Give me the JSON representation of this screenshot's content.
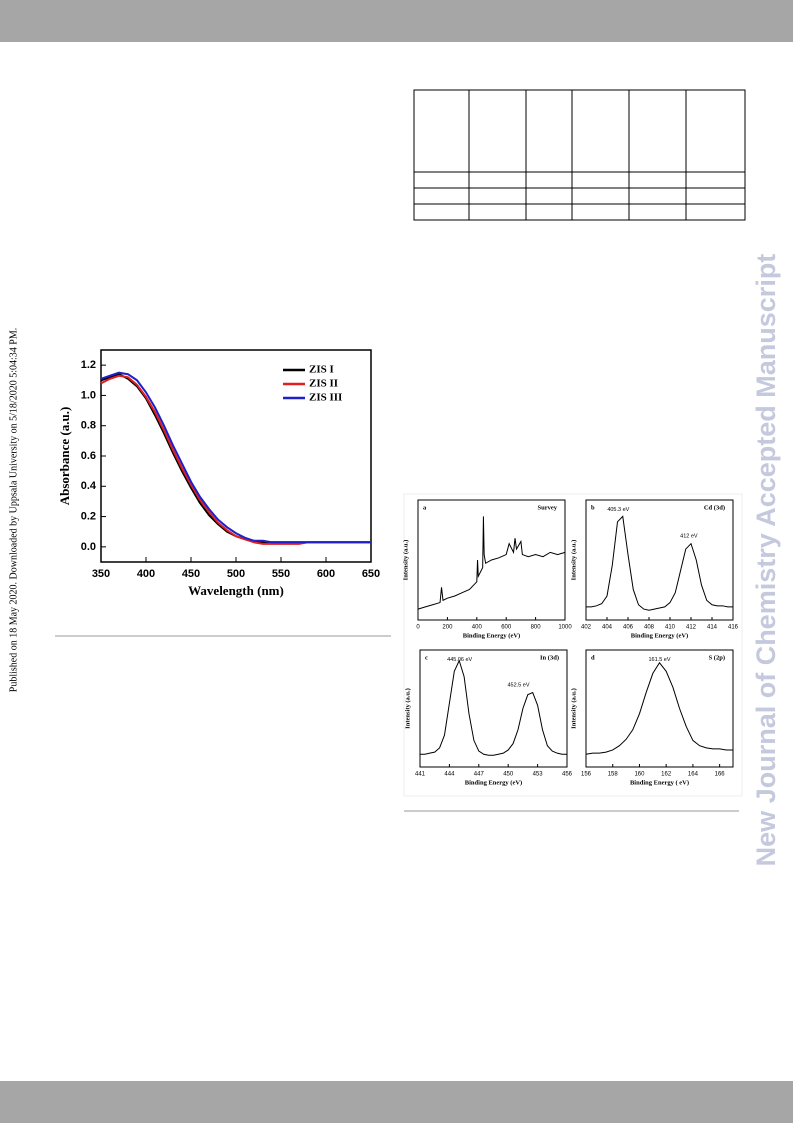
{
  "sidebar": "Published on 18 May 2020. Downloaded by Uppsala University on 5/18/2020 5:04:34 PM.",
  "watermark": "New Journal of Chemistry Accepted Manuscript",
  "chart_data": [
    {
      "type": "line",
      "xlabel": "Wavelength (nm)",
      "ylabel": "Absorbance (a.u.)",
      "xlim": [
        350,
        650
      ],
      "ylim": [
        -0.1,
        1.3
      ],
      "xticks": [
        350,
        400,
        450,
        500,
        550,
        600,
        650
      ],
      "yticks": [
        {
          "value": 0,
          "label": "0.0"
        },
        0.2,
        0.4,
        0.6,
        0.8,
        {
          "value": 1,
          "label": "1.0"
        },
        1.2
      ],
      "x": [
        350,
        360,
        370,
        380,
        390,
        400,
        410,
        420,
        430,
        440,
        450,
        460,
        470,
        480,
        490,
        500,
        510,
        520,
        530,
        540,
        550,
        560,
        570,
        580,
        590,
        600,
        610,
        620,
        630,
        640,
        650
      ],
      "series": [
        {
          "name": "ZIS I",
          "color": "#000000",
          "values": [
            1.1,
            1.12,
            1.14,
            1.11,
            1.06,
            0.98,
            0.87,
            0.75,
            0.62,
            0.5,
            0.39,
            0.29,
            0.21,
            0.15,
            0.1,
            0.07,
            0.05,
            0.04,
            0.03,
            0.03,
            0.03,
            0.03,
            0.03,
            0.03,
            0.03,
            0.03,
            0.03,
            0.03,
            0.03,
            0.03,
            0.03
          ]
        },
        {
          "name": "ZIS II",
          "color": "#e02020",
          "values": [
            1.08,
            1.11,
            1.13,
            1.12,
            1.07,
            0.99,
            0.89,
            0.77,
            0.64,
            0.52,
            0.41,
            0.31,
            0.23,
            0.16,
            0.11,
            0.07,
            0.05,
            0.03,
            0.02,
            0.02,
            0.02,
            0.02,
            0.02,
            0.03,
            0.03,
            0.03,
            0.03,
            0.03,
            0.03,
            0.03,
            0.03
          ]
        },
        {
          "name": "ZIS III",
          "color": "#2020c8",
          "values": [
            1.11,
            1.13,
            1.15,
            1.14,
            1.1,
            1.02,
            0.92,
            0.8,
            0.67,
            0.55,
            0.43,
            0.33,
            0.25,
            0.18,
            0.13,
            0.09,
            0.06,
            0.04,
            0.04,
            0.03,
            0.03,
            0.03,
            0.03,
            0.03,
            0.03,
            0.03,
            0.03,
            0.03,
            0.03,
            0.03,
            0.03
          ]
        }
      ],
      "legend": "upper right"
    },
    {
      "type": "line",
      "panel": "a",
      "title": "Survey",
      "xlabel": "Binding Energy (eV)",
      "ylabel": "Intensity (a.u.)",
      "xlim": [
        0,
        1000
      ],
      "ylim": [
        0,
        110
      ],
      "xticks": [
        0,
        200,
        400,
        600,
        800,
        1000
      ],
      "color": "#000000",
      "x": [
        0,
        50,
        100,
        150,
        160,
        170,
        200,
        250,
        300,
        350,
        400,
        405,
        410,
        440,
        445,
        450,
        460,
        500,
        550,
        600,
        620,
        650,
        660,
        670,
        700,
        710,
        750,
        800,
        850,
        900,
        950,
        1000
      ],
      "values": [
        10,
        12,
        14,
        16,
        30,
        18,
        20,
        22,
        25,
        28,
        35,
        55,
        40,
        48,
        95,
        60,
        52,
        55,
        57,
        60,
        70,
        62,
        75,
        65,
        72,
        60,
        58,
        60,
        58,
        62,
        60,
        62
      ],
      "annotations": []
    },
    {
      "type": "line",
      "panel": "b",
      "title": "Cd (3d)",
      "xlabel": "Binding Energy (eV)",
      "ylabel": "Intensity (a.u.)",
      "xlim": [
        402,
        416
      ],
      "ylim": [
        0,
        110
      ],
      "xticks": [
        402,
        404,
        406,
        408,
        410,
        412,
        414,
        416
      ],
      "color": "#000000",
      "x": [
        402,
        402.5,
        403,
        403.5,
        404,
        404.5,
        405,
        405.5,
        406,
        406.5,
        407,
        407.5,
        408,
        408.5,
        409,
        409.5,
        410,
        410.5,
        411,
        411.5,
        412,
        412.5,
        413,
        413.5,
        414,
        414.5,
        415,
        415.5,
        416
      ],
      "values": [
        12,
        12,
        13,
        15,
        22,
        50,
        90,
        95,
        60,
        28,
        14,
        10,
        9,
        10,
        11,
        12,
        16,
        25,
        45,
        65,
        70,
        55,
        32,
        18,
        14,
        13,
        13,
        12,
        12
      ],
      "annotations": [
        "405.3 eV",
        "412 eV"
      ]
    },
    {
      "type": "line",
      "panel": "c",
      "title": "In (3d)",
      "xlabel": "Binding Energy (eV)",
      "ylabel": "Intensity (a.u.)",
      "xlim": [
        441,
        456
      ],
      "ylim": [
        0,
        110
      ],
      "xticks": [
        441,
        444,
        447,
        450,
        453,
        456
      ],
      "color": "#000000",
      "x": [
        441,
        441.5,
        442,
        442.5,
        443,
        443.5,
        444,
        444.5,
        445,
        445.5,
        446,
        446.5,
        447,
        447.5,
        448,
        448.5,
        449,
        449.5,
        450,
        450.5,
        451,
        451.5,
        452,
        452.5,
        453,
        453.5,
        454,
        454.5,
        455,
        455.5,
        456
      ],
      "values": [
        12,
        12,
        13,
        14,
        18,
        30,
        60,
        90,
        100,
        85,
        50,
        25,
        15,
        12,
        11,
        11,
        12,
        13,
        16,
        22,
        35,
        55,
        68,
        70,
        58,
        35,
        20,
        15,
        13,
        12,
        12
      ],
      "annotations": [
        "445.06 eV",
        "452.5 eV"
      ]
    },
    {
      "type": "line",
      "panel": "d",
      "title": "S (2p)",
      "xlabel": "Binding Energy ( eV)",
      "ylabel": "Intensity (a.u.)",
      "xlim": [
        156,
        167
      ],
      "ylim": [
        0,
        110
      ],
      "xticks": [
        156,
        158,
        160,
        162,
        164,
        166
      ],
      "color": "#000000",
      "x": [
        156,
        156.5,
        157,
        157.5,
        158,
        158.5,
        159,
        159.5,
        160,
        160.5,
        161,
        161.5,
        162,
        162.5,
        163,
        163.5,
        164,
        164.5,
        165,
        165.5,
        166,
        166.5,
        167
      ],
      "values": [
        12,
        13,
        13,
        14,
        16,
        20,
        26,
        35,
        50,
        70,
        88,
        98,
        90,
        75,
        55,
        38,
        25,
        20,
        18,
        17,
        17,
        16,
        16
      ],
      "annotations": [
        "161.5 eV"
      ]
    }
  ]
}
